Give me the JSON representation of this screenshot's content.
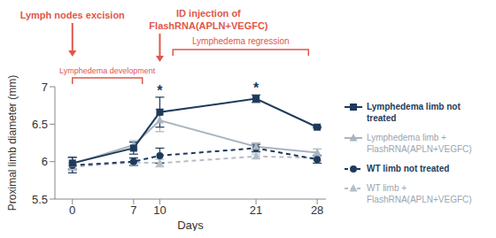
{
  "chart_data": {
    "type": "line",
    "x_label": "Days",
    "y_label": "Proximal limb diameter (mm)",
    "x": [
      0,
      7,
      10,
      21,
      28
    ],
    "xlim": [
      -2,
      29
    ],
    "xticks": [
      0,
      7,
      10,
      21,
      28
    ],
    "ylim": [
      5.5,
      7
    ],
    "yticks": [
      5.5,
      6,
      6.5,
      7
    ],
    "grid": false,
    "legend": "right",
    "series": [
      {
        "name": "Lymphedema limb not treated",
        "color": "#1e3a5c",
        "marker": "square",
        "line_style": "solid",
        "values": [
          5.98,
          6.18,
          6.66,
          6.84,
          6.46
        ],
        "errors": [
          0.08,
          0.08,
          0.2,
          0.05,
          0.01
        ]
      },
      {
        "name": "Lymphedema limb + FlashRNA(APLN+VEGFC)",
        "color": "#a9b4bf",
        "marker": "triangle",
        "line_style": "solid",
        "values": [
          5.97,
          6.22,
          6.55,
          6.2,
          6.12
        ],
        "errors": [
          0.08,
          0.06,
          0.15,
          0.05,
          0.05
        ]
      },
      {
        "name": "WT limb not treated",
        "color": "#1e3a5c",
        "marker": "circle",
        "line_style": "dashed",
        "values": [
          5.95,
          6.0,
          6.08,
          6.18,
          6.03
        ],
        "errors": [
          0.1,
          0.05,
          0.1,
          0.05,
          0.05
        ]
      },
      {
        "name": "WT limb + FlashRNA(APLN+VEGFC)",
        "color": "#b5bec8",
        "marker": "triangle",
        "line_style": "dashed",
        "values": [
          5.93,
          5.99,
          5.98,
          6.07,
          6.05
        ],
        "errors": [
          0.05,
          0.04,
          0.05,
          0.03,
          0.04
        ]
      }
    ],
    "annotations": {
      "arrows": [
        {
          "text": "Lymph nodes excision",
          "x": 0
        },
        {
          "text": "ID injection of FlashRNA(APLN+VEGFC)",
          "x": 10
        }
      ],
      "brackets": [
        {
          "text": "Lymphedema development",
          "x": [
            0,
            8
          ]
        },
        {
          "text": "Lymphedema regression",
          "x": [
            11.5,
            27
          ]
        }
      ],
      "stars": [
        {
          "text": "*",
          "x": 10
        },
        {
          "text": "*",
          "x": 21
        }
      ]
    }
  }
}
